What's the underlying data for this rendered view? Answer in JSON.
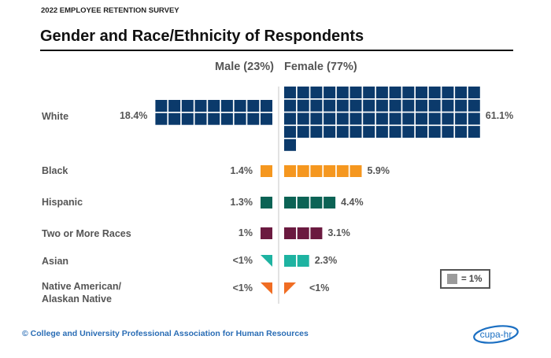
{
  "header": {
    "survey_label": "2022 EMPLOYEE RETENTION SURVEY",
    "title": "Gender and Race/Ethnicity of Respondents"
  },
  "legend": {
    "swatch_color": "#9b9b9b",
    "label": "= 1%"
  },
  "footer": {
    "copyright": "© College and University Professional Association for Human Resources",
    "logo_text": "cupa-hr"
  },
  "chart_data": {
    "type": "waffle",
    "title": "Gender and Race/Ethnicity of Respondents",
    "unit": "1 square = 1%",
    "groups": [
      {
        "name": "Male",
        "label": "Male (23%)",
        "share": 23
      },
      {
        "name": "Female",
        "label": "Female (77%)",
        "share": 77
      }
    ],
    "categories": [
      "White",
      "Black",
      "Hispanic",
      "Two or More Races",
      "Asian",
      "Native American/ Alaskan Native"
    ],
    "category_lines": [
      [
        "White"
      ],
      [
        "Black"
      ],
      [
        "Hispanic"
      ],
      [
        "Two or More Races"
      ],
      [
        "Asian"
      ],
      [
        "Native American/",
        "Alaskan Native"
      ]
    ],
    "colors": [
      "#0b3a6b",
      "#f5971f",
      "#0b6355",
      "#6b1a40",
      "#1eb3a1",
      "#f06d23"
    ],
    "series": [
      {
        "name": "Male",
        "values": [
          18.4,
          1.4,
          1.3,
          1.0,
          0.5,
          0.5
        ],
        "labels": [
          "18.4%",
          "1.4%",
          "1.3%",
          "1%",
          "<1%",
          "<1%"
        ],
        "squares": [
          18,
          1,
          1,
          1,
          0,
          0
        ],
        "partial": [
          null,
          null,
          null,
          null,
          "tri-upper-right",
          "tri-upper-right"
        ]
      },
      {
        "name": "Female",
        "values": [
          61.1,
          5.9,
          4.4,
          3.1,
          2.3,
          0.5
        ],
        "labels": [
          "61.1%",
          "5.9%",
          "4.4%",
          "3.1%",
          "2.3%",
          "<1%"
        ],
        "squares": [
          61,
          6,
          4,
          3,
          2,
          0
        ],
        "partial": [
          null,
          null,
          null,
          null,
          null,
          "tri-upper-left"
        ]
      }
    ]
  }
}
